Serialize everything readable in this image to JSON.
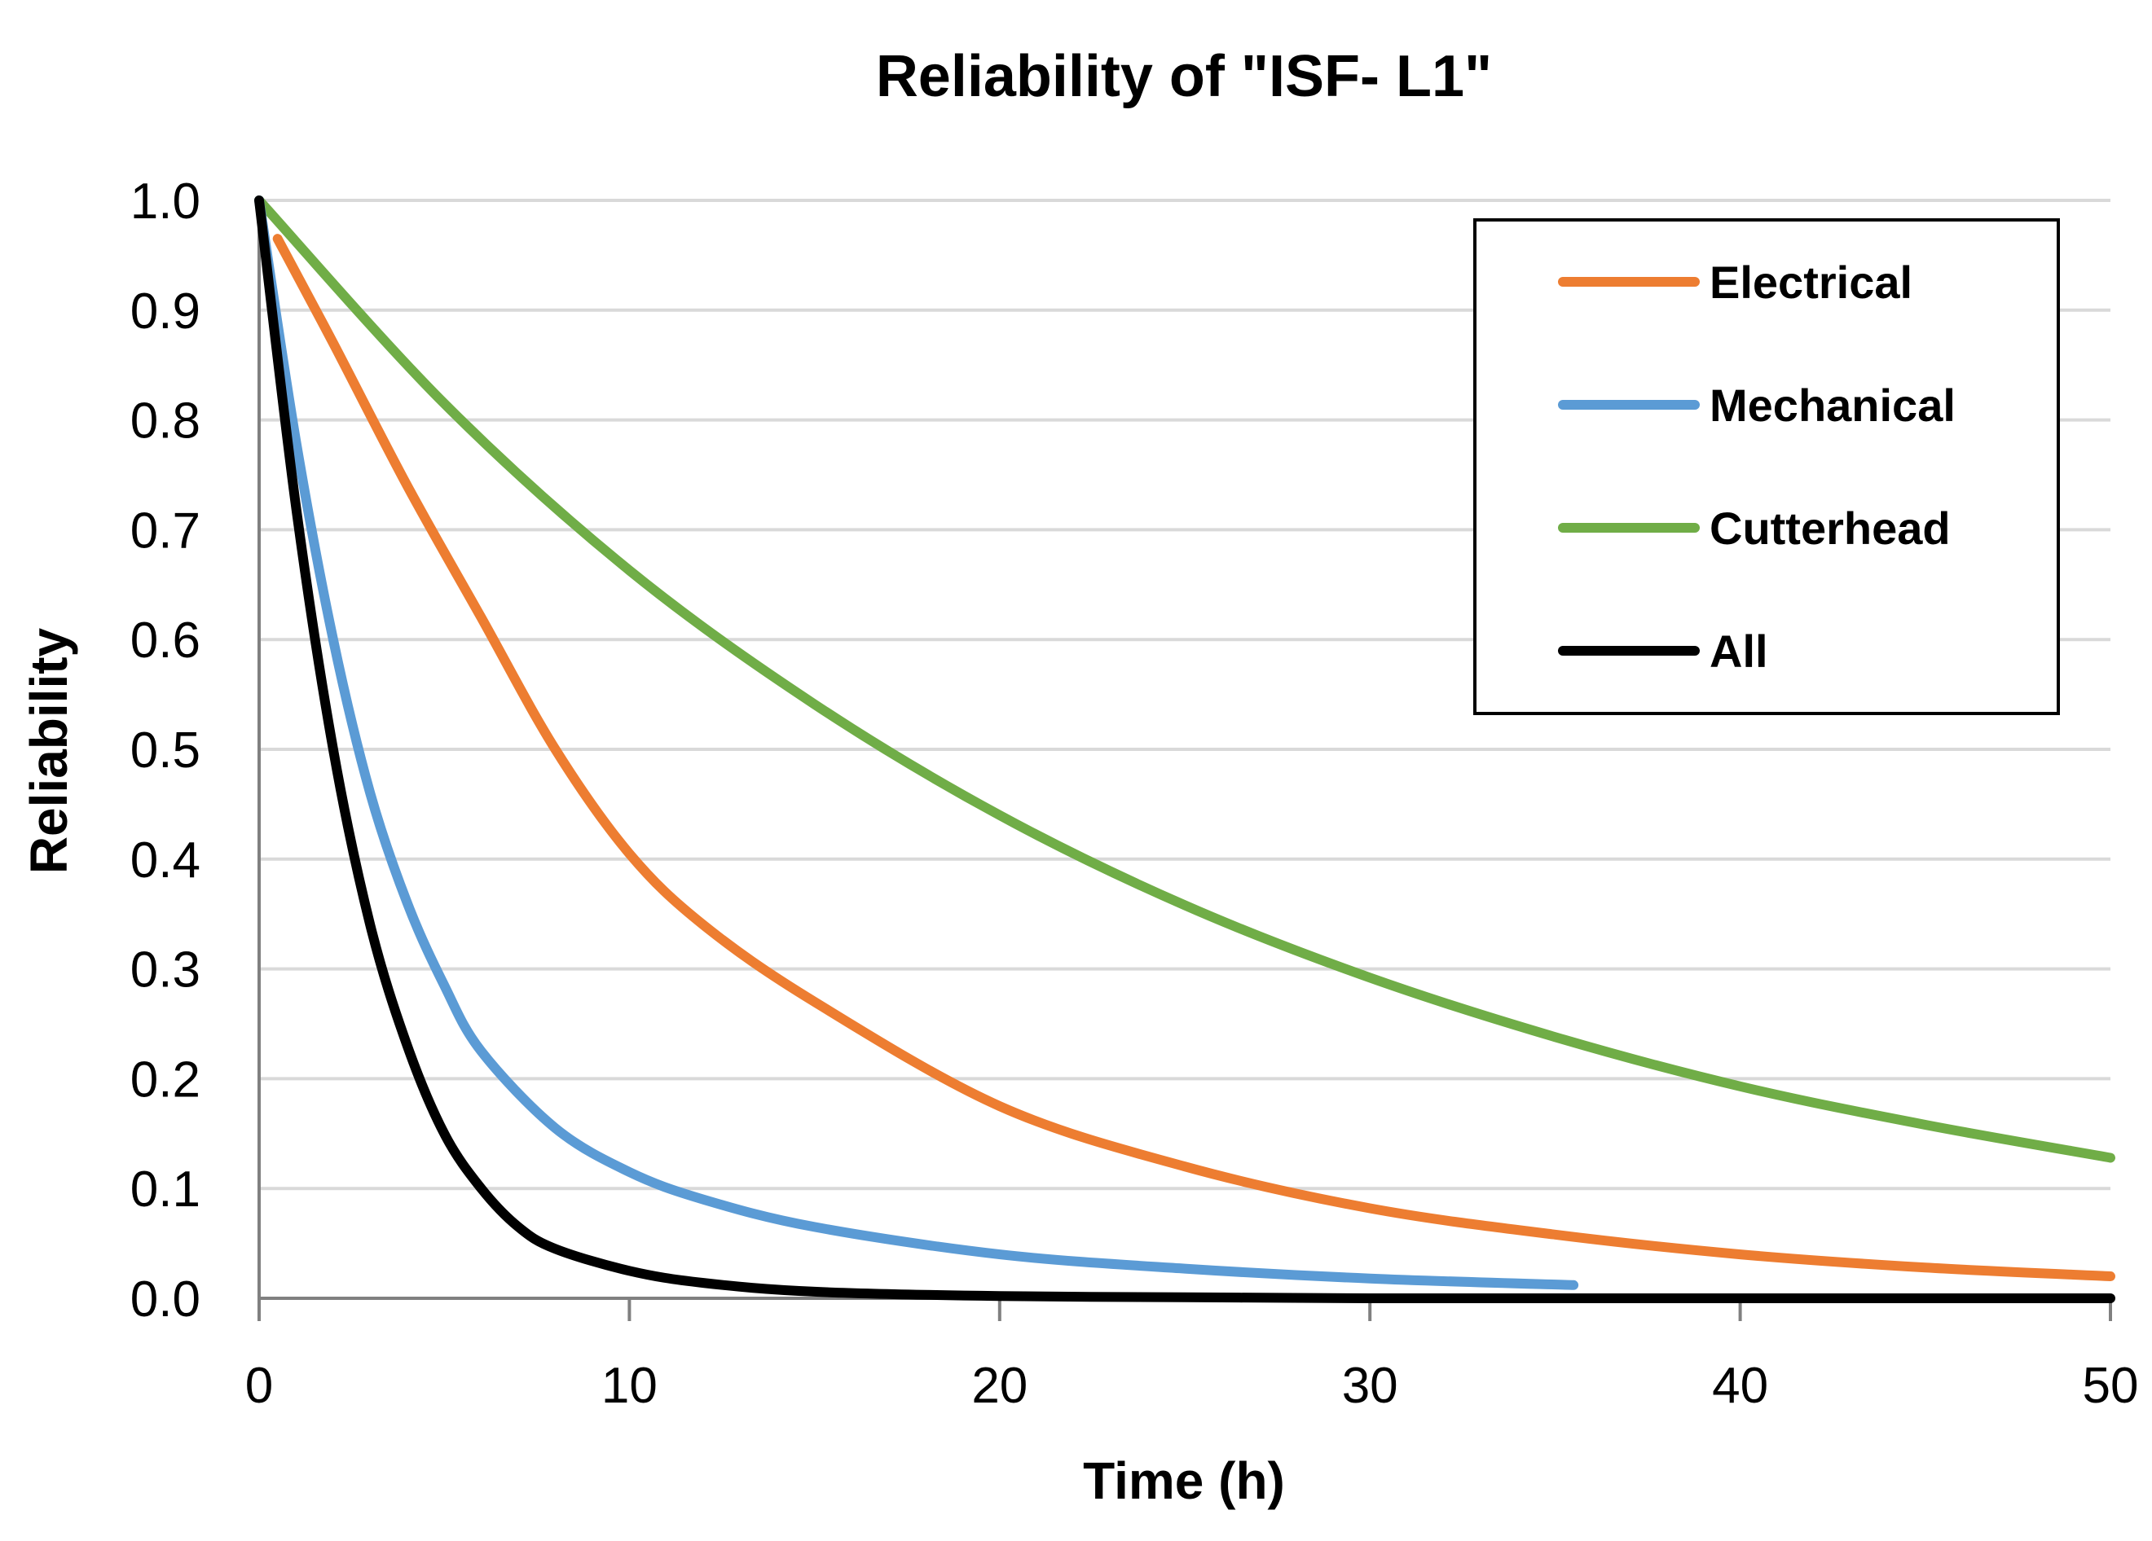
{
  "chart_data": {
    "type": "line",
    "title": "Reliability of  \"ISF- L1\"",
    "xlabel": "Time (h)",
    "ylabel": "Reliability",
    "xlim": [
      0,
      50
    ],
    "ylim": [
      0.0,
      1.0
    ],
    "x_ticks": [
      "0",
      "10",
      "20",
      "30",
      "40",
      "50"
    ],
    "y_ticks": [
      "0.0",
      "0.1",
      "0.2",
      "0.3",
      "0.4",
      "0.5",
      "0.6",
      "0.7",
      "0.8",
      "0.9",
      "1.0"
    ],
    "grid": true,
    "legend_position": "top-right",
    "series": [
      {
        "name": "Electrical",
        "color": "#ED7D31",
        "x": [
          0.5,
          2,
          4,
          6,
          8,
          10,
          12,
          15,
          20,
          25,
          30,
          35,
          40,
          45,
          50
        ],
        "y": [
          0.965,
          0.87,
          0.74,
          0.62,
          0.5,
          0.405,
          0.34,
          0.27,
          0.175,
          0.12,
          0.082,
          0.058,
          0.04,
          0.028,
          0.02
        ]
      },
      {
        "name": "Mechanical",
        "color": "#5B9BD5",
        "x": [
          0,
          1,
          2,
          3,
          4,
          5,
          6,
          8,
          10,
          12,
          15,
          20,
          25,
          30,
          35.5
        ],
        "y": [
          1.0,
          0.78,
          0.6,
          0.46,
          0.36,
          0.285,
          0.225,
          0.155,
          0.115,
          0.09,
          0.065,
          0.04,
          0.027,
          0.018,
          0.012
        ]
      },
      {
        "name": "Cutterhead",
        "color": "#70AD47",
        "x": [
          0,
          5,
          10,
          15,
          20,
          25,
          30,
          35,
          40,
          45,
          50
        ],
        "y": [
          1.0,
          0.815,
          0.663,
          0.541,
          0.44,
          0.358,
          0.292,
          0.238,
          0.193,
          0.158,
          0.128
        ]
      },
      {
        "name": "All",
        "color": "#000000",
        "x": [
          0,
          1,
          2,
          3,
          4,
          5,
          6,
          7,
          8,
          10,
          12,
          15,
          20,
          25,
          30,
          40,
          50
        ],
        "y": [
          1.0,
          0.72,
          0.5,
          0.34,
          0.23,
          0.15,
          0.1,
          0.065,
          0.045,
          0.025,
          0.014,
          0.006,
          0.002,
          0.001,
          0.0,
          0.0,
          0.0
        ]
      }
    ]
  }
}
